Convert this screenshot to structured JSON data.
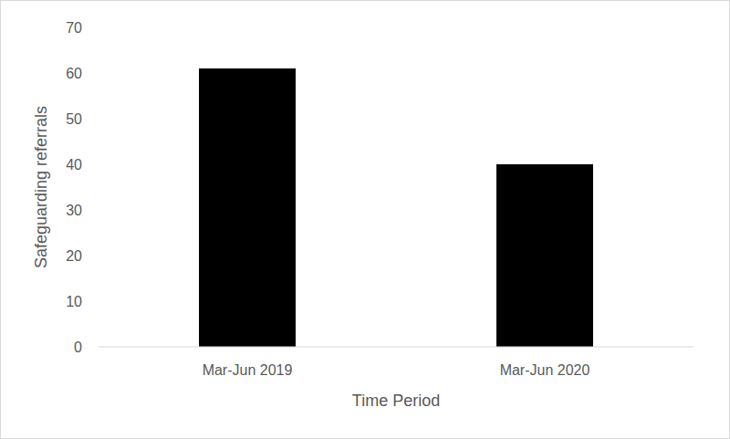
{
  "chart_data": {
    "type": "bar",
    "x_label": "Time Period",
    "y_label": "Safeguarding referrals",
    "categories": [
      "Mar-Jun 2019",
      "Mar-Jun 2020"
    ],
    "values": [
      61,
      40
    ],
    "color": "#000000",
    "ylim": [
      0,
      70
    ],
    "yticks": [
      0,
      10,
      20,
      30,
      40,
      50,
      60,
      70
    ],
    "grid": false
  }
}
